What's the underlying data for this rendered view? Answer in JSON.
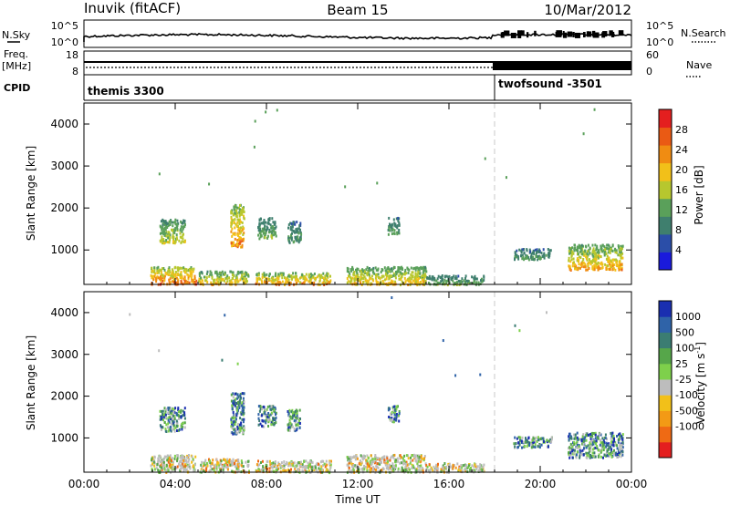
{
  "header": {
    "station": "Inuvik",
    "mode": "(fitACF)",
    "beam": "Beam 15",
    "date": "10/Mar/2012"
  },
  "nsky_panel": {
    "left_label": "N.Sky",
    "right_label": "N.Search",
    "left_ticks": [
      "10^5",
      "10^0"
    ],
    "right_ticks": [
      "10^5",
      "10^0"
    ]
  },
  "freq_panel": {
    "left_label_1": "Freq.",
    "left_label_2": "[MHz]",
    "right_label": "Nave",
    "left_ticks": [
      "18",
      "8"
    ],
    "right_ticks": [
      "60",
      "0"
    ]
  },
  "cpid_panel": {
    "label": "CPID",
    "programs": [
      {
        "name": "themis 3300",
        "start_hour": 0
      },
      {
        "name": "twofsound -3501",
        "start_hour": 18
      }
    ]
  },
  "colors": {
    "power": [
      "#1a1adc",
      "#2b4ea8",
      "#3f7f6e",
      "#5aa05a",
      "#b7c72e",
      "#f2c019",
      "#f08c12",
      "#ea5a14",
      "#e41f1f"
    ],
    "velocity_pos": [
      "#1a2fb0",
      "#2f63a8",
      "#3b7d72",
      "#56a64a",
      "#7ed04b"
    ],
    "velocity_zero": "#bdbdbd",
    "velocity_neg": [
      "#f2c019",
      "#f39a15",
      "#ef6a14",
      "#e41f1f"
    ],
    "gap_line": "#c8c8c8"
  },
  "chart_data": [
    {
      "type": "heatmap",
      "name": "power",
      "xlabel": "",
      "ylabel": "Slant Range [km]",
      "x_range": [
        0,
        24
      ],
      "ylim": [
        180,
        4500
      ],
      "y_ticks": [
        1000,
        2000,
        3000,
        4000
      ],
      "x_ticks": [
        0,
        4,
        8,
        12,
        16,
        20,
        24
      ],
      "colorbar": {
        "label": "Power [dB]",
        "ticks": [
          "4",
          "8",
          "12",
          "16",
          "20",
          "24",
          "28"
        ],
        "range": [
          0,
          32
        ]
      },
      "regions": [
        {
          "t0": 2.9,
          "t1": 4.9,
          "r0": 200,
          "r1": 620,
          "v0": 8,
          "v1": 30
        },
        {
          "t0": 5.0,
          "t1": 7.2,
          "r0": 200,
          "r1": 520,
          "v0": 6,
          "v1": 24
        },
        {
          "t0": 7.5,
          "t1": 10.8,
          "r0": 200,
          "r1": 480,
          "v0": 6,
          "v1": 28
        },
        {
          "t0": 11.5,
          "t1": 15.0,
          "r0": 200,
          "r1": 620,
          "v0": 6,
          "v1": 24
        },
        {
          "t0": 15.0,
          "t1": 17.5,
          "r0": 200,
          "r1": 420,
          "v0": 4,
          "v1": 16
        },
        {
          "t0": 3.3,
          "t1": 4.4,
          "r0": 1180,
          "r1": 1750,
          "v0": 6,
          "v1": 20
        },
        {
          "t0": 6.4,
          "t1": 7.0,
          "r0": 1100,
          "r1": 2100,
          "v0": 8,
          "v1": 28
        },
        {
          "t0": 7.6,
          "t1": 8.4,
          "r0": 1300,
          "r1": 1800,
          "v0": 4,
          "v1": 16
        },
        {
          "t0": 8.9,
          "t1": 9.5,
          "r0": 1200,
          "r1": 1700,
          "v0": 4,
          "v1": 14
        },
        {
          "t0": 13.3,
          "t1": 13.8,
          "r0": 1400,
          "r1": 1800,
          "v0": 4,
          "v1": 14
        },
        {
          "t0": 18.8,
          "t1": 20.5,
          "r0": 800,
          "r1": 1050,
          "v0": 4,
          "v1": 14
        },
        {
          "t0": 21.2,
          "t1": 23.6,
          "r0": 550,
          "r1": 1150,
          "v0": 6,
          "v1": 26
        }
      ]
    },
    {
      "type": "heatmap",
      "name": "velocity",
      "xlabel": "Time UT",
      "ylabel": "Slant Range [km]",
      "x_range": [
        0,
        24
      ],
      "ylim": [
        180,
        4500
      ],
      "y_ticks": [
        1000,
        2000,
        3000,
        4000
      ],
      "x_ticks": [
        0,
        4,
        8,
        12,
        16,
        20,
        24
      ],
      "x_tick_labels": [
        "00:00",
        "04:00",
        "08:00",
        "12:00",
        "16:00",
        "20:00",
        "00:00"
      ],
      "colorbar": {
        "label": "Velocity [m s",
        "label_sup": "-1",
        "label_end": "]",
        "ticks": [
          "1000",
          "500",
          "100",
          "25",
          "-25",
          "-100",
          "-500",
          "-1000"
        ]
      },
      "regions": [
        {
          "t0": 2.9,
          "t1": 4.9,
          "r0": 200,
          "r1": 620,
          "kind": "mixed"
        },
        {
          "t0": 5.0,
          "t1": 7.2,
          "r0": 200,
          "r1": 520,
          "kind": "mixed"
        },
        {
          "t0": 7.5,
          "t1": 10.8,
          "r0": 200,
          "r1": 480,
          "kind": "mixed"
        },
        {
          "t0": 11.5,
          "t1": 15.0,
          "r0": 200,
          "r1": 620,
          "kind": "mixed"
        },
        {
          "t0": 15.0,
          "t1": 17.5,
          "r0": 200,
          "r1": 420,
          "kind": "mixed"
        },
        {
          "t0": 3.3,
          "t1": 4.4,
          "r0": 1180,
          "r1": 1750,
          "kind": "pos"
        },
        {
          "t0": 6.4,
          "t1": 7.0,
          "r0": 1100,
          "r1": 2100,
          "kind": "pos"
        },
        {
          "t0": 7.6,
          "t1": 8.4,
          "r0": 1300,
          "r1": 1800,
          "kind": "pos"
        },
        {
          "t0": 8.9,
          "t1": 9.5,
          "r0": 1200,
          "r1": 1700,
          "kind": "pos"
        },
        {
          "t0": 13.3,
          "t1": 13.8,
          "r0": 1400,
          "r1": 1800,
          "kind": "pos"
        },
        {
          "t0": 18.8,
          "t1": 20.5,
          "r0": 800,
          "r1": 1050,
          "kind": "pos"
        },
        {
          "t0": 21.2,
          "t1": 23.6,
          "r0": 550,
          "r1": 1150,
          "kind": "pos"
        }
      ]
    }
  ]
}
